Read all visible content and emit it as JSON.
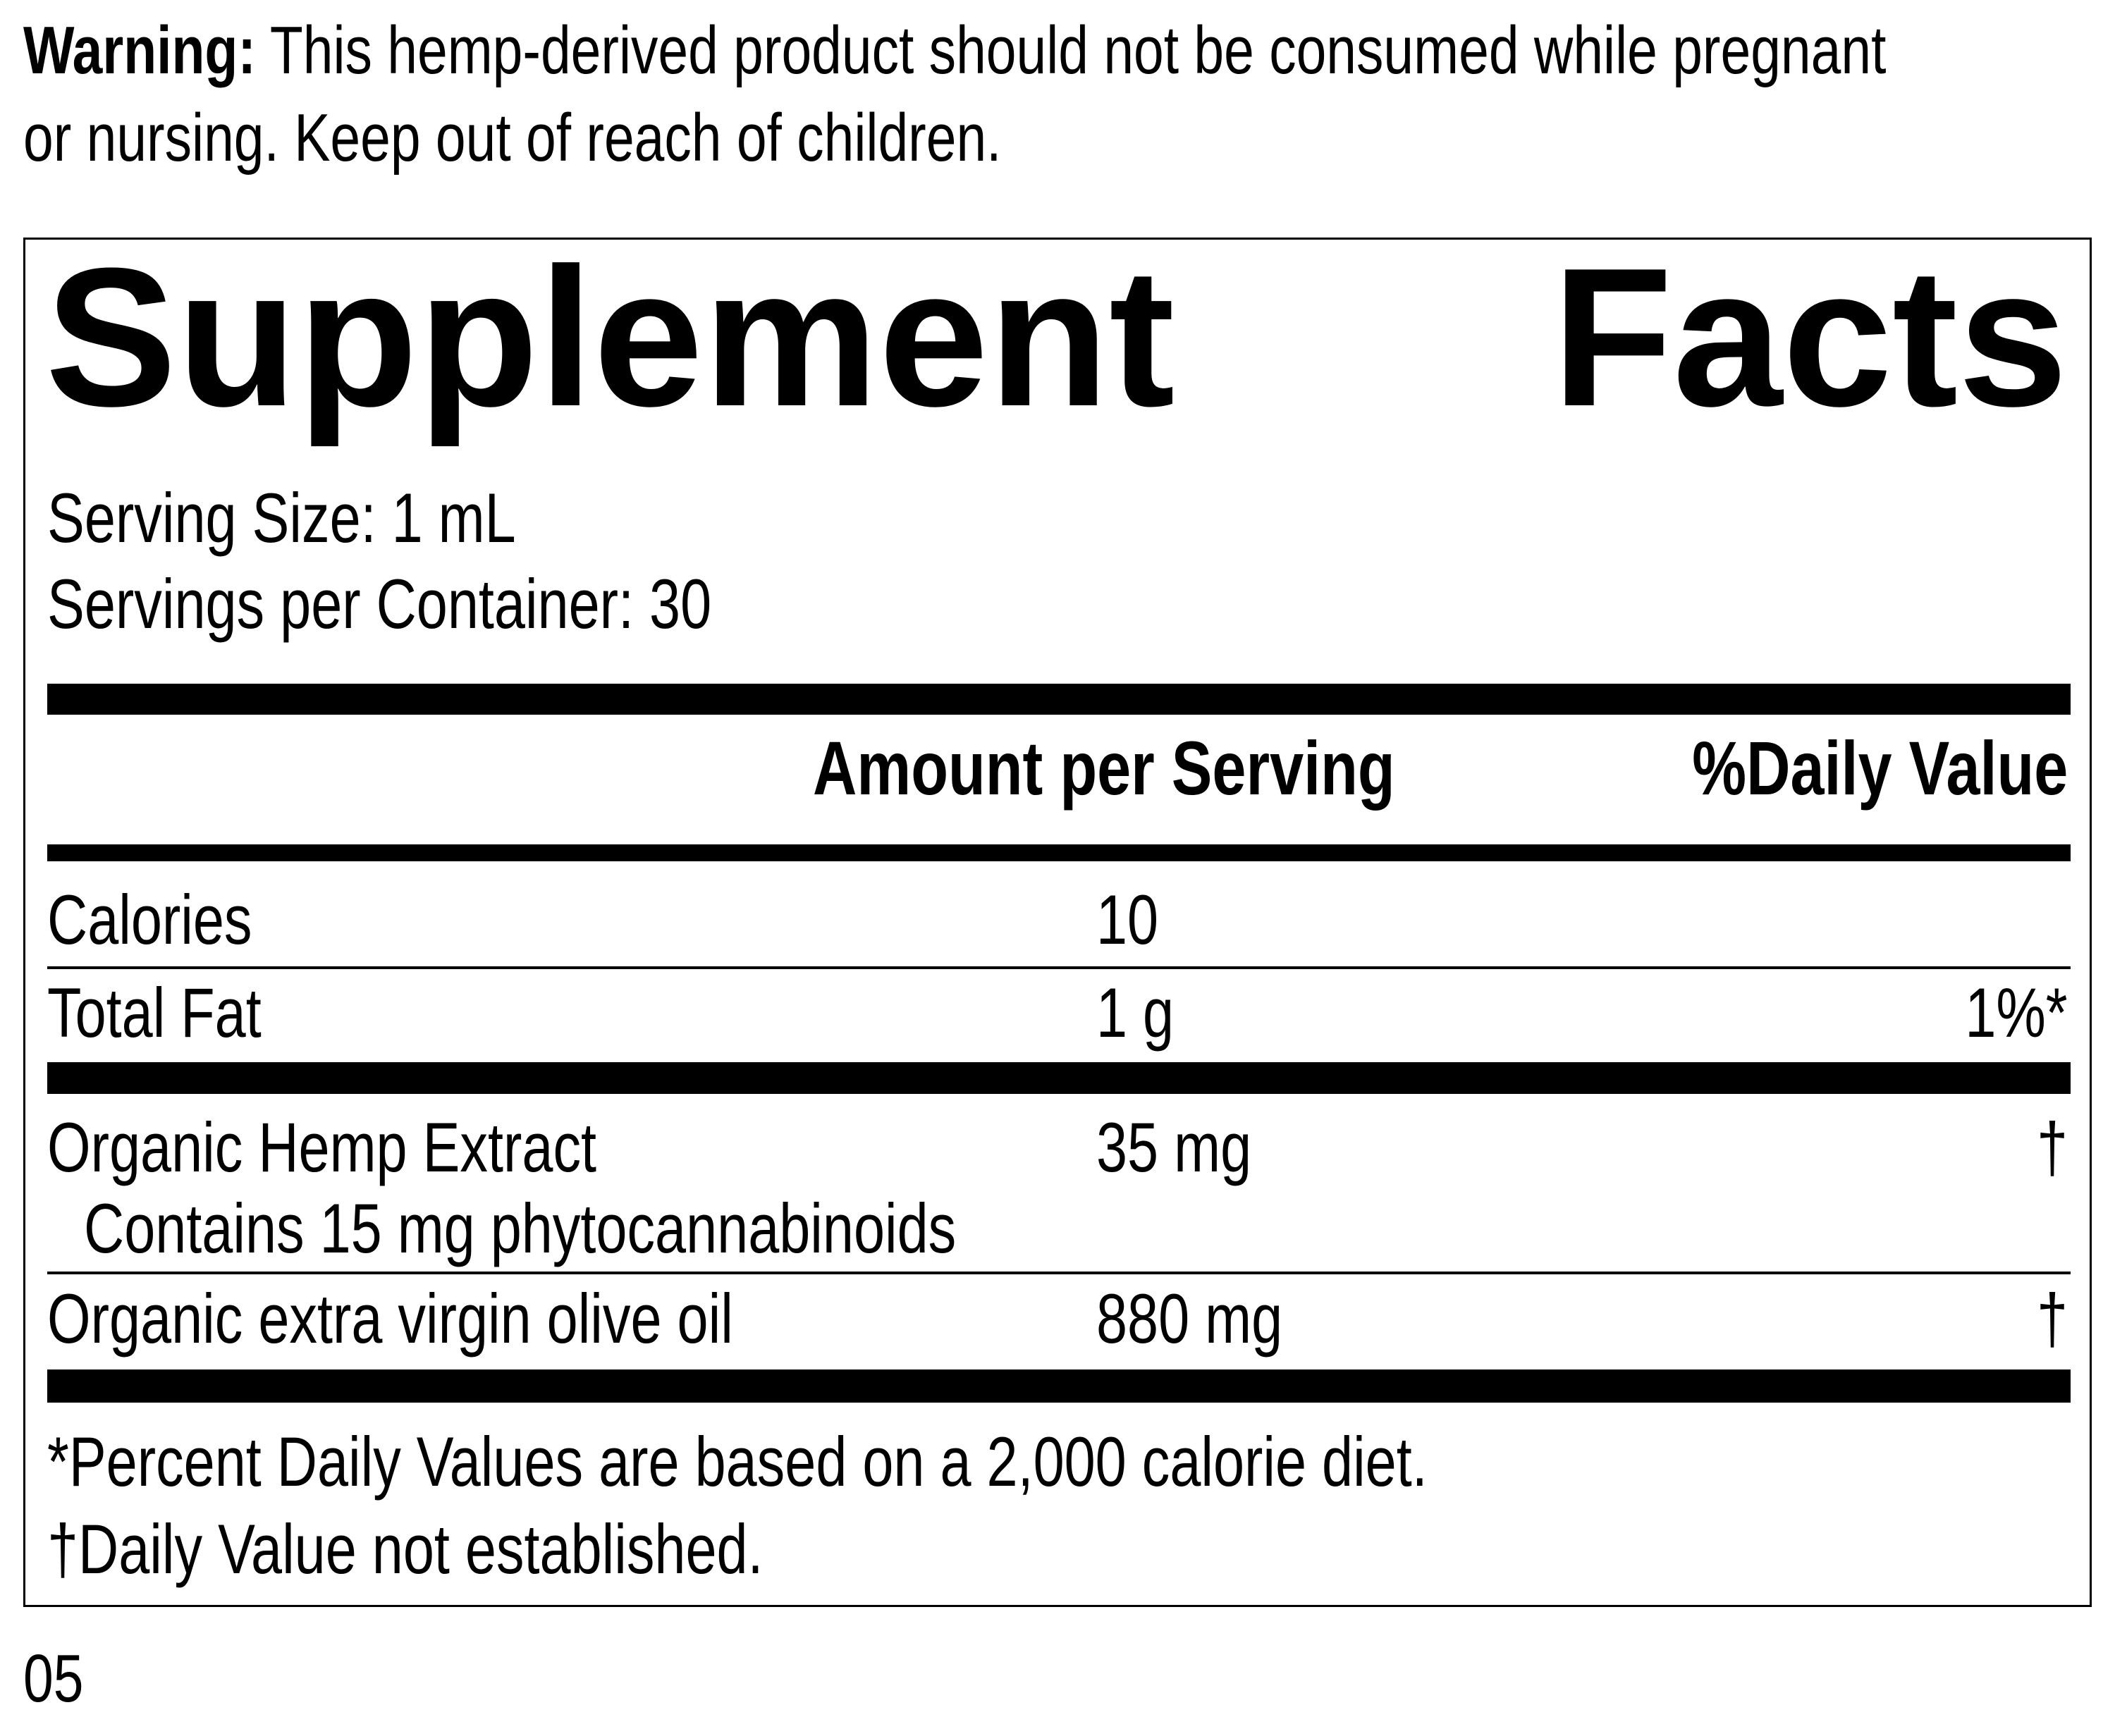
{
  "warning": {
    "label": "Warning:",
    "line1": " This hemp-derived product should not be consumed while pregnant",
    "line2": "or nursing. Keep out of reach of children."
  },
  "panel": {
    "title_word1": "Supplement",
    "title_word2": "Facts",
    "serving_size": "Serving Size: 1 mL",
    "servings_per_container": "Servings per Container: 30",
    "header": {
      "amount": "Amount per Serving",
      "dv": "%Daily Value"
    },
    "rows": [
      {
        "name": "Calories",
        "amount": "10",
        "dv": ""
      },
      {
        "name": "Total Fat",
        "amount": "1 g",
        "dv": "1%*"
      },
      {
        "name": "Organic Hemp Extract",
        "sub": "Contains 15 mg phytocannabinoids",
        "amount": "35 mg",
        "dv": "†"
      },
      {
        "name": "Organic extra virgin olive oil",
        "amount": "880 mg",
        "dv": "†"
      }
    ],
    "footnote1": "*Percent Daily Values are based on a 2,000 calorie diet.",
    "footnote2": "†Daily Value not established."
  },
  "code": "05"
}
